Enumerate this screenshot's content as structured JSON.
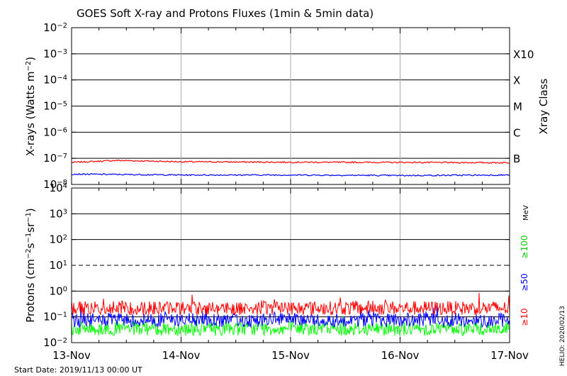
{
  "chart_data": [
    {
      "type": "line",
      "title": "GOES Soft X-ray and Protons Fluxes   (1min & 5min data)",
      "ylabel": "X-rays (Watts m^-2)",
      "ylabel_parts": {
        "main": "X-rays (Watts m",
        "exp": "−2",
        "close": ")"
      },
      "yscale": "log",
      "ylim": [
        1e-08,
        0.01
      ],
      "y_ticks": [
        {
          "mant": "10",
          "exp": "−8"
        },
        {
          "mant": "10",
          "exp": "−7"
        },
        {
          "mant": "10",
          "exp": "−6"
        },
        {
          "mant": "10",
          "exp": "−5"
        },
        {
          "mant": "10",
          "exp": "−4"
        },
        {
          "mant": "10",
          "exp": "−3"
        },
        {
          "mant": "10",
          "exp": "−2"
        }
      ],
      "right_axis_label": "Xray Class",
      "class_labels": [
        {
          "label": "B",
          "value": 1e-07
        },
        {
          "label": "C",
          "value": 1e-06
        },
        {
          "label": "M",
          "value": 1e-05
        },
        {
          "label": "X",
          "value": 0.0001
        },
        {
          "label": "X10",
          "value": 0.001
        }
      ],
      "x_start": "2019-11-13",
      "x_end": "2019-11-17",
      "grid": true,
      "series": [
        {
          "color": "#ff0000",
          "base": 7e-08,
          "noise": 0.05,
          "points": [
            [
              "2019-11-13",
              7e-08
            ],
            [
              "2019-11-13T10:00",
              8.3e-08
            ],
            [
              "2019-11-14",
              7.4e-08
            ],
            [
              "2019-11-15",
              7.1e-08
            ],
            [
              "2019-11-16",
              7e-08
            ],
            [
              "2019-11-17",
              6.8e-08
            ]
          ]
        },
        {
          "color": "#0000ff",
          "base": 2.3e-08,
          "noise": 0.05,
          "points": [
            [
              "2019-11-13",
              2.5e-08
            ],
            [
              "2019-11-14",
              2.3e-08
            ],
            [
              "2019-11-15",
              2.3e-08
            ],
            [
              "2019-11-16",
              2.2e-08
            ],
            [
              "2019-11-17",
              2.3e-08
            ]
          ]
        }
      ]
    },
    {
      "type": "line",
      "ylabel": "Protons (cm^-2 s^-1 sr^-1)",
      "ylabel_parts": {
        "a": "Protons (cm",
        "e1": "−2",
        "b": "s",
        "e2": "−1",
        "c": "sr",
        "e3": "−1",
        "d": ")"
      },
      "yscale": "log",
      "ylim": [
        0.01,
        10000
      ],
      "y_ticks": [
        {
          "mant": "10",
          "exp": "−2"
        },
        {
          "mant": "10",
          "exp": "−1"
        },
        {
          "mant": "10",
          "exp": "0"
        },
        {
          "mant": "10",
          "exp": "1"
        },
        {
          "mant": "10",
          "exp": "2"
        },
        {
          "mant": "10",
          "exp": "3"
        },
        {
          "mant": "10",
          "exp": "4"
        }
      ],
      "threshold_line": 10,
      "right_labels": [
        {
          "text": "MeV",
          "color": "#000000"
        },
        {
          "text": "≥100",
          "color": "#00cc00"
        },
        {
          "text": "≥50",
          "color": "#0000ff"
        },
        {
          "text": "≥10",
          "color": "#ff0000"
        }
      ],
      "grid": true,
      "series": [
        {
          "name": "≥10",
          "color": "#ff0000",
          "base": 0.22,
          "noise": 0.55
        },
        {
          "name": "≥50",
          "color": "#0000ff",
          "base": 0.075,
          "noise": 0.55
        },
        {
          "name": "≥100",
          "color": "#00ff00",
          "base": 0.035,
          "noise": 0.55
        }
      ],
      "x_tick_labels": [
        "13-Nov",
        "14-Nov",
        "15-Nov",
        "16-Nov",
        "17-Nov"
      ]
    }
  ],
  "footer": {
    "start_date": "Start Date: 2019/11/13 00:00 UT",
    "credit": "HELIO: 2020/02/13"
  }
}
